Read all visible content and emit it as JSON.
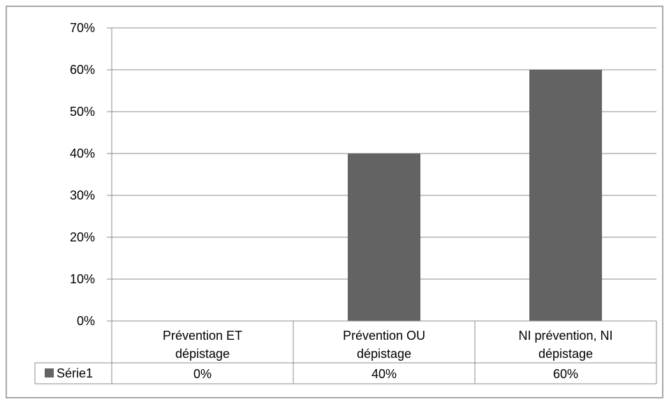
{
  "chart_data": {
    "type": "bar",
    "categories": [
      "Prévention ET dépistage",
      "Prévention OU dépistage",
      "NI prévention, NI dépistage"
    ],
    "category_lines": [
      [
        "Prévention ET",
        "dépistage"
      ],
      [
        "Prévention OU",
        "dépistage"
      ],
      [
        "NI prévention, NI",
        "dépistage"
      ]
    ],
    "series": [
      {
        "name": "Série1",
        "values": [
          0,
          40,
          60
        ],
        "color": "#636363"
      }
    ],
    "data_table": {
      "series_label": "Série1",
      "cells": [
        "0%",
        "40%",
        "60%"
      ]
    },
    "y_ticks": [
      "0%",
      "10%",
      "20%",
      "30%",
      "40%",
      "50%",
      "60%",
      "70%"
    ],
    "ylim": [
      0,
      70
    ],
    "grid": true,
    "legend": "data-table",
    "title": "",
    "xlabel": "",
    "ylabel": ""
  }
}
